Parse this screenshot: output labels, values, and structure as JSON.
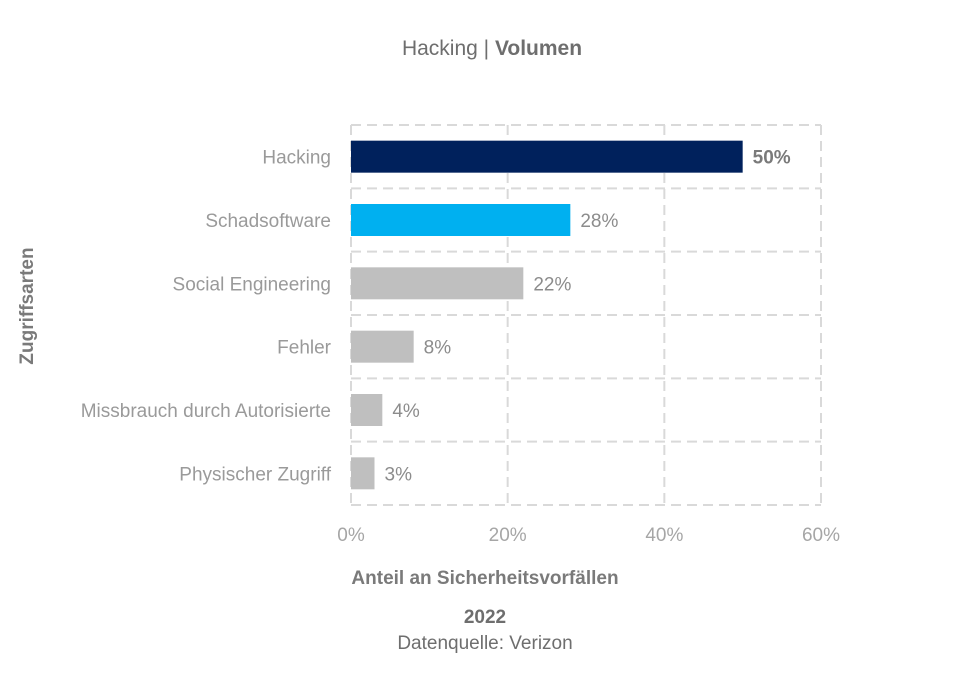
{
  "title": {
    "prefix": "Hacking",
    "separator": " | ",
    "bold": "Volumen"
  },
  "footer": {
    "year": "2022",
    "source": "Datenquelle: Verizon"
  },
  "colors": {
    "highlight": "#00215c",
    "secondary": "#00b0f0",
    "other": "#bfbfbf",
    "grid": "#d9d9d9"
  },
  "chart_data": {
    "type": "bar",
    "orientation": "horizontal",
    "categories": [
      "Hacking",
      "Schadsoftware",
      "Social Engineering",
      "Fehler",
      "Missbrauch durch Autorisierte",
      "Physischer Zugriff"
    ],
    "values": [
      50,
      28,
      22,
      8,
      4,
      3
    ],
    "value_labels": [
      "50%",
      "28%",
      "22%",
      "8%",
      "4%",
      "3%"
    ],
    "bar_colors": [
      "#00215c",
      "#00b0f0",
      "#bfbfbf",
      "#bfbfbf",
      "#bfbfbf",
      "#bfbfbf"
    ],
    "xlabel": "Anteil an Sicherheitsvorfällen",
    "ylabel": "Zugriffsarten",
    "xlim": [
      0,
      60
    ],
    "x_ticks": [
      0,
      20,
      40,
      60
    ],
    "x_tick_labels": [
      "0%",
      "20%",
      "40%",
      "60%"
    ],
    "grid": true,
    "legend": "none"
  }
}
